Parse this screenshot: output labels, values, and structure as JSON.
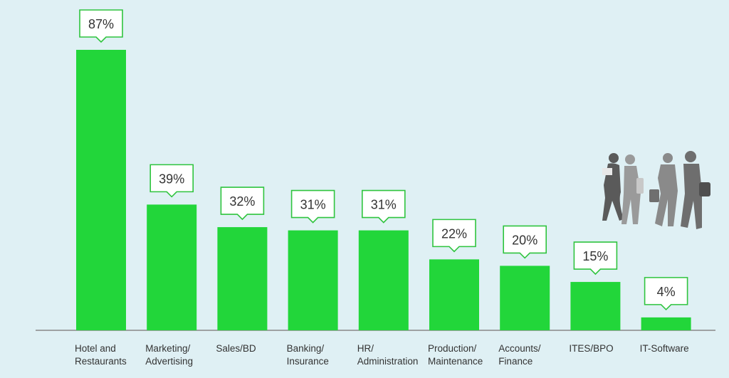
{
  "chart_data": {
    "type": "bar",
    "title": "",
    "xlabel": "",
    "ylabel": "",
    "ylim": [
      0,
      100
    ],
    "grid": false,
    "legend": "none",
    "categories": [
      "Hotel and\nRestaurants",
      "Marketing/\nAdvertising",
      "Sales/BD",
      "Banking/\nInsurance",
      "HR/\nAdministration",
      "Production/\nMaintenance",
      "Accounts/\nFinance",
      "ITES/BPO",
      "IT-Software"
    ],
    "values": [
      87,
      39,
      32,
      31,
      31,
      22,
      20,
      15,
      4
    ],
    "value_labels": [
      "87%",
      "39%",
      "32%",
      "31%",
      "31%",
      "22%",
      "20%",
      "15%",
      "4%"
    ]
  },
  "colors": {
    "background": "#dff0f4",
    "bar": "#22d63a",
    "callout_border": "#2fc43e",
    "axis": "#888888",
    "text": "#333333"
  },
  "decoration": {
    "icon": "walking-people-silhouette-icon"
  }
}
